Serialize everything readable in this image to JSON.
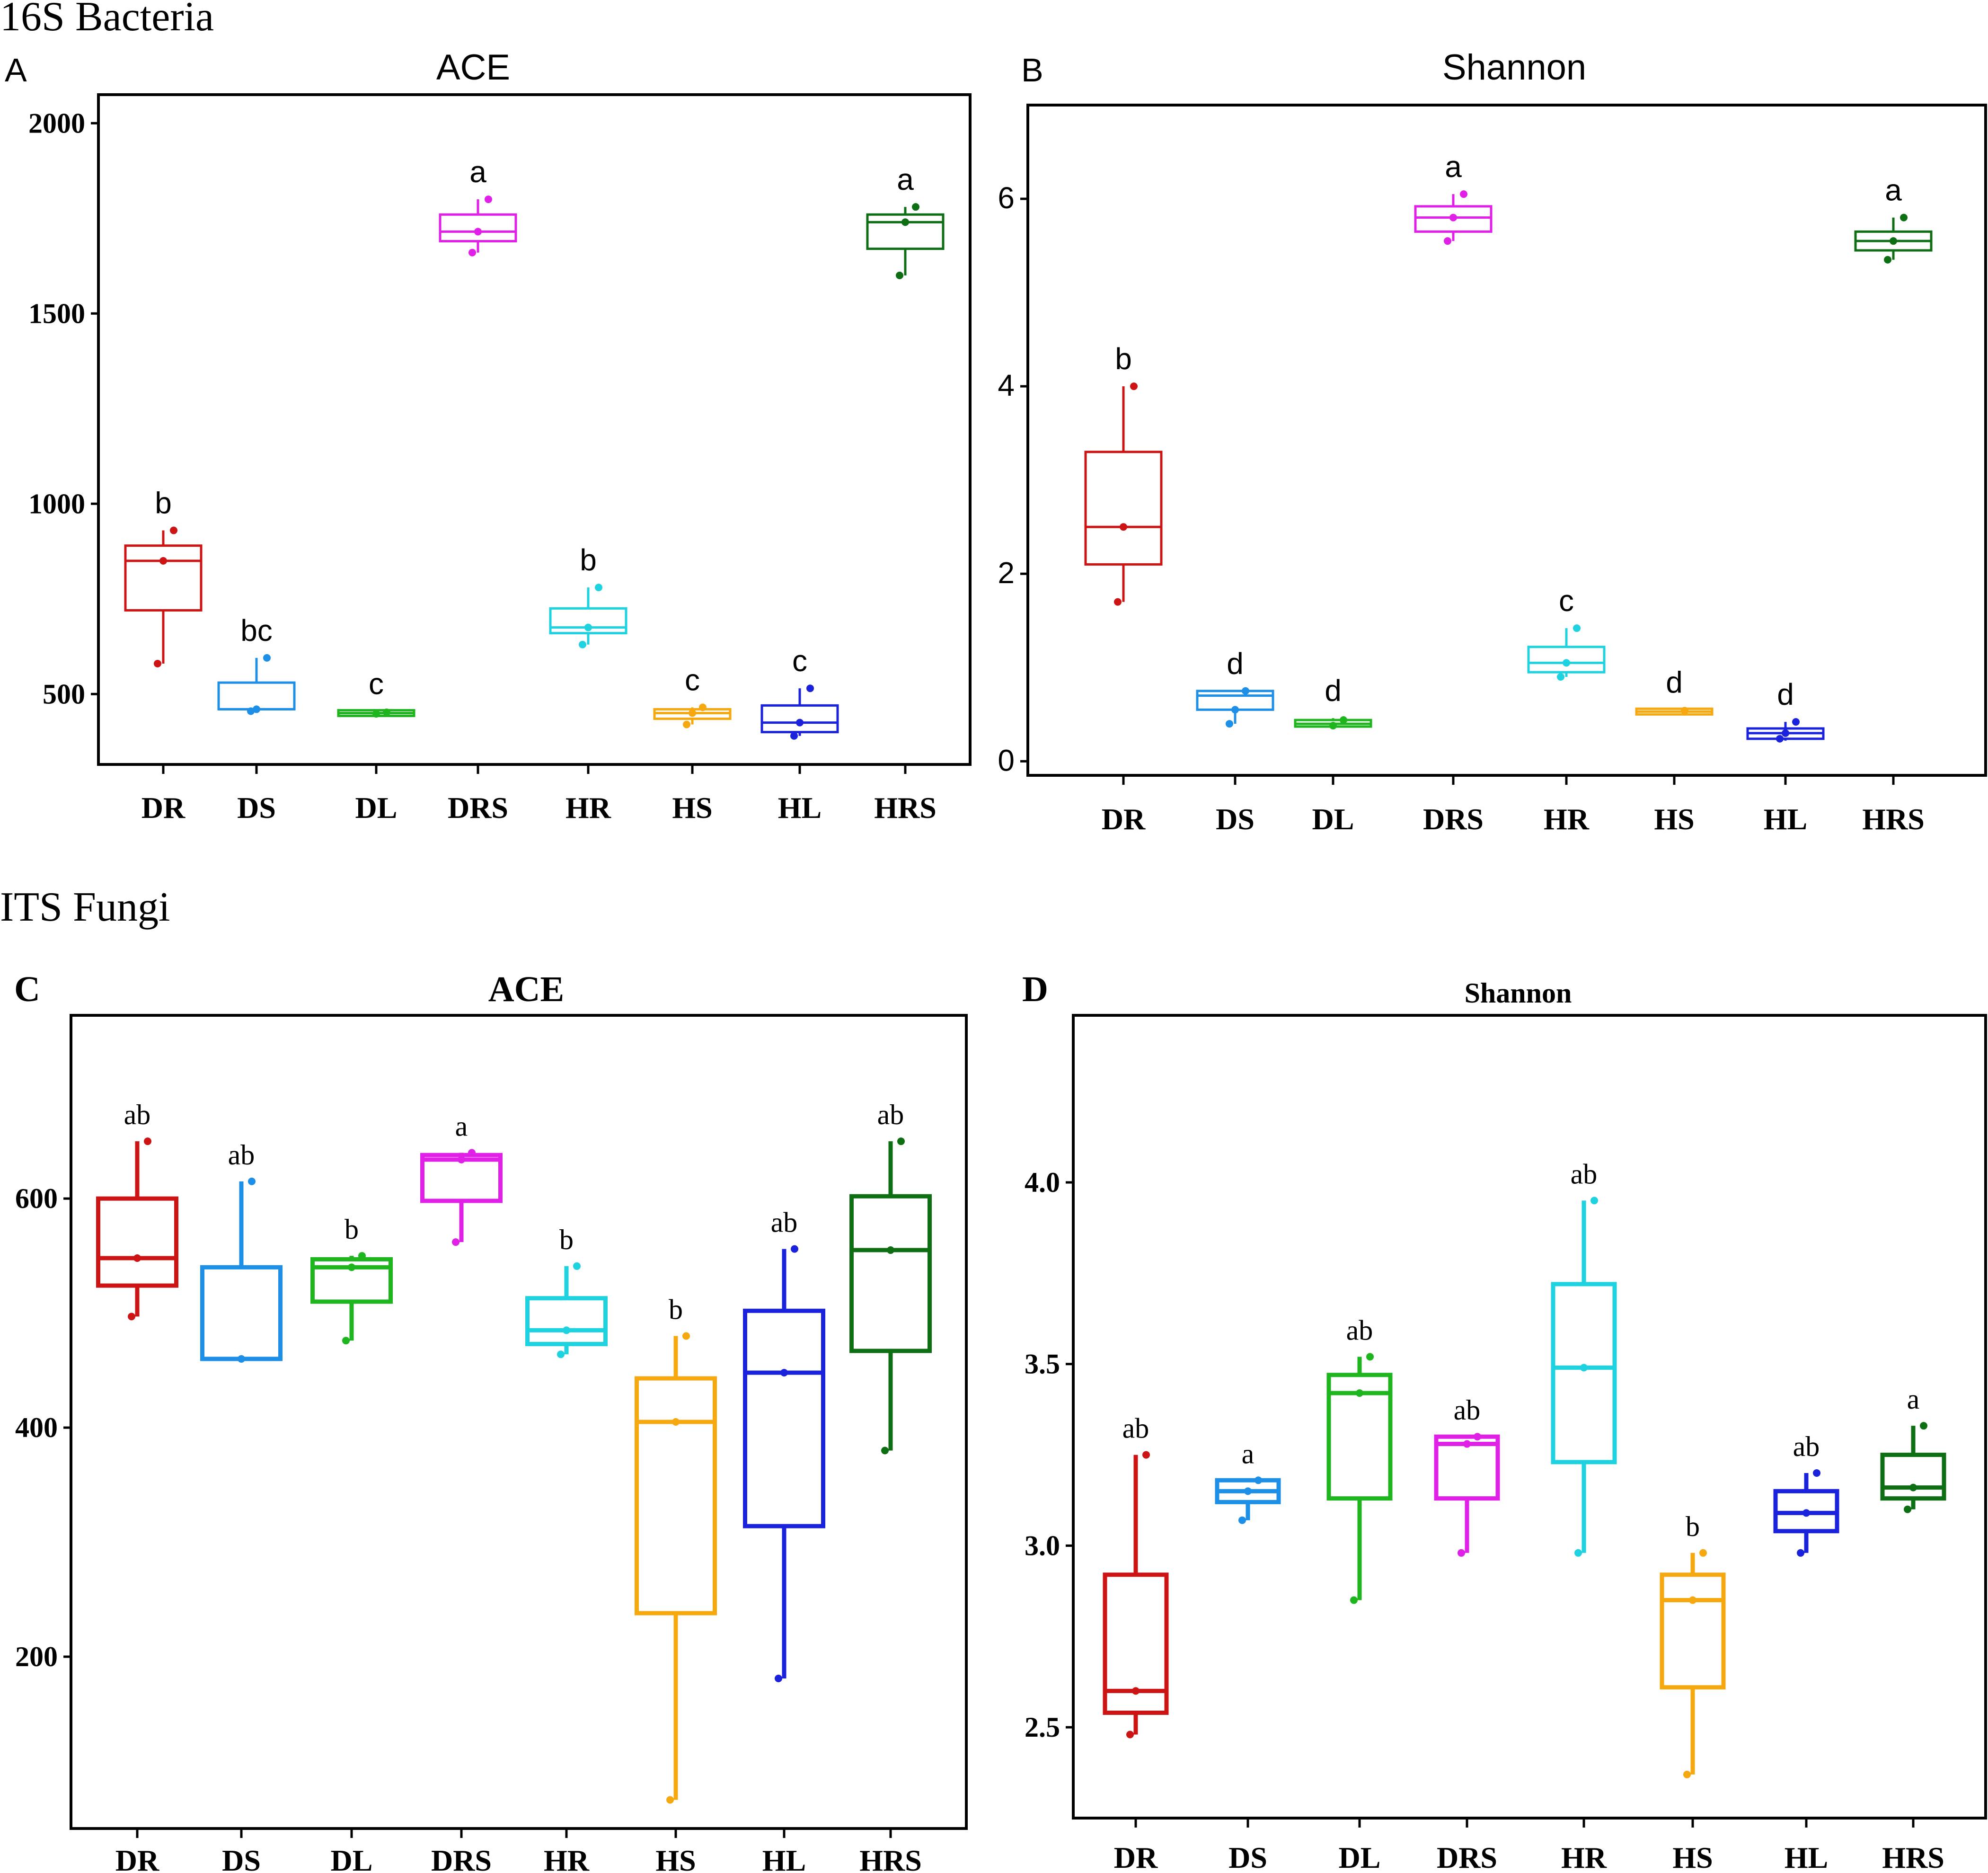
{
  "figure": {
    "section_bacteria": "16S Bacteria",
    "section_fungi": "ITS Fungi"
  },
  "colors": {
    "DR": "#cc1414",
    "DS": "#1e8fe6",
    "DL": "#1fb51f",
    "DRS": "#e020e6",
    "HR": "#1ed2e0",
    "HS": "#f5a80f",
    "HL": "#1a22dc",
    "HRS": "#0e6e14"
  },
  "chart_data": [
    {
      "panel": "A",
      "type": "box",
      "title": "ACE",
      "categories": [
        "DR",
        "DS",
        "DL",
        "DRS",
        "HR",
        "HS",
        "HL",
        "HRS"
      ],
      "ylim": [
        315,
        2075
      ],
      "yticks": [
        500,
        1000,
        1500,
        2000
      ],
      "boxes": [
        {
          "group": "DR",
          "min": 580,
          "q1": 720,
          "median": 850,
          "q3": 890,
          "max": 930,
          "points": [
            930,
            850,
            580
          ],
          "letter": "b"
        },
        {
          "group": "DS",
          "min": 455,
          "q1": 460,
          "median": 460,
          "q3": 530,
          "max": 595,
          "points": [
            595,
            460,
            455
          ],
          "letter": "bc"
        },
        {
          "group": "DL",
          "min": 445,
          "q1": 448,
          "median": 450,
          "q3": 452,
          "max": 455,
          "points": [
            452,
            448
          ],
          "letter": "c"
        },
        {
          "group": "DRS",
          "min": 1660,
          "q1": 1690,
          "median": 1715,
          "q3": 1760,
          "max": 1800,
          "points": [
            1800,
            1715,
            1660
          ],
          "letter": "a"
        },
        {
          "group": "HR",
          "min": 630,
          "q1": 660,
          "median": 675,
          "q3": 725,
          "max": 780,
          "points": [
            780,
            675,
            630
          ],
          "letter": "b"
        },
        {
          "group": "HS",
          "min": 420,
          "q1": 435,
          "median": 450,
          "q3": 460,
          "max": 465,
          "points": [
            465,
            450,
            420
          ],
          "letter": "c"
        },
        {
          "group": "HL",
          "min": 390,
          "q1": 400,
          "median": 425,
          "q3": 470,
          "max": 515,
          "points": [
            515,
            425,
            390
          ],
          "letter": "c"
        },
        {
          "group": "HRS",
          "min": 1600,
          "q1": 1670,
          "median": 1740,
          "q3": 1760,
          "max": 1780,
          "points": [
            1780,
            1740,
            1600
          ],
          "letter": "a"
        }
      ]
    },
    {
      "panel": "B",
      "type": "box",
      "title": "Shannon",
      "categories": [
        "DR",
        "DS",
        "DL",
        "DRS",
        "HR",
        "HS",
        "HL",
        "HRS"
      ],
      "ylim": [
        -0.15,
        7.0
      ],
      "yticks": [
        0,
        2,
        4,
        6
      ],
      "boxes": [
        {
          "group": "DR",
          "min": 1.7,
          "q1": 2.1,
          "median": 2.5,
          "q3": 3.3,
          "max": 4.0,
          "points": [
            4.0,
            2.5,
            1.7
          ],
          "letter": "b"
        },
        {
          "group": "DS",
          "min": 0.4,
          "q1": 0.55,
          "median": 0.7,
          "q3": 0.75,
          "max": 0.75,
          "points": [
            0.75,
            0.55,
            0.4
          ],
          "letter": "d"
        },
        {
          "group": "DL",
          "min": 0.35,
          "q1": 0.37,
          "median": 0.4,
          "q3": 0.44,
          "max": 0.46,
          "points": [
            0.44,
            0.38
          ],
          "letter": "d"
        },
        {
          "group": "DRS",
          "min": 5.55,
          "q1": 5.65,
          "median": 5.8,
          "q3": 5.92,
          "max": 6.05,
          "points": [
            6.05,
            5.8,
            5.55
          ],
          "letter": "a"
        },
        {
          "group": "HR",
          "min": 0.9,
          "q1": 0.95,
          "median": 1.05,
          "q3": 1.22,
          "max": 1.42,
          "points": [
            1.42,
            1.05,
            0.9
          ],
          "letter": "c"
        },
        {
          "group": "HS",
          "min": 0.52,
          "q1": 0.52,
          "median": 0.53,
          "q3": 0.54,
          "max": 0.55,
          "points": [
            0.54
          ],
          "letter": "d"
        },
        {
          "group": "HL",
          "min": 0.22,
          "q1": 0.24,
          "median": 0.3,
          "q3": 0.35,
          "max": 0.42,
          "points": [
            0.42,
            0.3,
            0.24
          ],
          "letter": "d"
        },
        {
          "group": "HRS",
          "min": 5.35,
          "q1": 5.45,
          "median": 5.55,
          "q3": 5.65,
          "max": 5.8,
          "points": [
            5.8,
            5.55,
            5.35
          ],
          "letter": "a"
        }
      ]
    },
    {
      "panel": "C",
      "type": "box",
      "title": "ACE",
      "categories": [
        "DR",
        "DS",
        "DL",
        "DRS",
        "HR",
        "HS",
        "HL",
        "HRS"
      ],
      "ylim": [
        50,
        760
      ],
      "yticks": [
        200,
        400,
        600
      ],
      "boxes": [
        {
          "group": "DR",
          "min": 497,
          "q1": 524,
          "median": 548,
          "q3": 600,
          "max": 650,
          "points": [
            650,
            548,
            497
          ],
          "letter": "ab"
        },
        {
          "group": "DS",
          "min": 460,
          "q1": 460,
          "median": 460,
          "q3": 540,
          "max": 615,
          "points": [
            615,
            460
          ],
          "letter": "ab"
        },
        {
          "group": "DL",
          "min": 476,
          "q1": 510,
          "median": 540,
          "q3": 547,
          "max": 550,
          "points": [
            550,
            540,
            476
          ],
          "letter": "b"
        },
        {
          "group": "DRS",
          "min": 562,
          "q1": 598,
          "median": 634,
          "q3": 638,
          "max": 640,
          "points": [
            640,
            634,
            562
          ],
          "letter": "a"
        },
        {
          "group": "HR",
          "min": 464,
          "q1": 473,
          "median": 485,
          "q3": 513,
          "max": 541,
          "points": [
            541,
            485,
            464
          ],
          "letter": "b"
        },
        {
          "group": "HS",
          "min": 75,
          "q1": 238,
          "median": 405,
          "q3": 443,
          "max": 480,
          "points": [
            480,
            405,
            75
          ],
          "letter": "b"
        },
        {
          "group": "HL",
          "min": 181,
          "q1": 314,
          "median": 448,
          "q3": 502,
          "max": 556,
          "points": [
            556,
            448,
            181
          ],
          "letter": "ab"
        },
        {
          "group": "HRS",
          "min": 380,
          "q1": 467,
          "median": 555,
          "q3": 602,
          "max": 650,
          "points": [
            650,
            555,
            380
          ],
          "letter": "ab"
        }
      ]
    },
    {
      "panel": "D",
      "type": "box",
      "title": "Shannon",
      "categories": [
        "DR",
        "DS",
        "DL",
        "DRS",
        "HR",
        "HS",
        "HL",
        "HRS"
      ],
      "ylim": [
        2.25,
        4.46
      ],
      "yticks": [
        2.5,
        3.0,
        3.5,
        4.0
      ],
      "boxes": [
        {
          "group": "DR",
          "min": 2.48,
          "q1": 2.54,
          "median": 2.6,
          "q3": 2.92,
          "max": 3.25,
          "points": [
            3.25,
            2.6,
            2.48
          ],
          "letter": "ab"
        },
        {
          "group": "DS",
          "min": 3.07,
          "q1": 3.12,
          "median": 3.15,
          "q3": 3.18,
          "max": 3.18,
          "points": [
            3.18,
            3.15,
            3.07
          ],
          "letter": "a"
        },
        {
          "group": "DL",
          "min": 2.85,
          "q1": 3.13,
          "median": 3.42,
          "q3": 3.47,
          "max": 3.52,
          "points": [
            3.52,
            3.42,
            2.85
          ],
          "letter": "ab"
        },
        {
          "group": "DRS",
          "min": 2.98,
          "q1": 3.13,
          "median": 3.28,
          "q3": 3.3,
          "max": 3.3,
          "points": [
            3.3,
            3.28,
            2.98
          ],
          "letter": "ab"
        },
        {
          "group": "HR",
          "min": 2.98,
          "q1": 3.23,
          "median": 3.49,
          "q3": 3.72,
          "max": 3.95,
          "points": [
            3.95,
            3.49,
            2.98
          ],
          "letter": "ab"
        },
        {
          "group": "HS",
          "min": 2.37,
          "q1": 2.61,
          "median": 2.85,
          "q3": 2.92,
          "max": 2.98,
          "points": [
            2.98,
            2.85,
            2.37
          ],
          "letter": "b"
        },
        {
          "group": "HL",
          "min": 2.98,
          "q1": 3.04,
          "median": 3.09,
          "q3": 3.15,
          "max": 3.2,
          "points": [
            3.2,
            3.09,
            2.98
          ],
          "letter": "ab"
        },
        {
          "group": "HRS",
          "min": 3.1,
          "q1": 3.13,
          "median": 3.16,
          "q3": 3.25,
          "max": 3.33,
          "points": [
            3.33,
            3.16,
            3.1
          ],
          "letter": "a"
        }
      ]
    }
  ]
}
